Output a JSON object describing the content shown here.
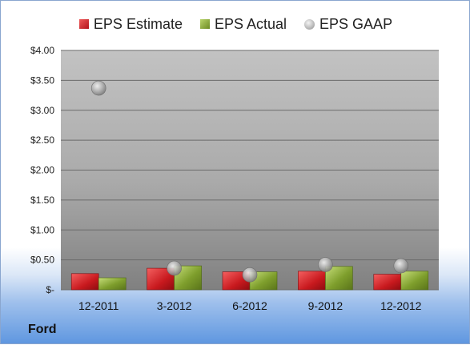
{
  "chart_data": {
    "type": "bar",
    "categories": [
      "12-2011",
      "3-2012",
      "6-2012",
      "9-2012",
      "12-2012"
    ],
    "series": [
      {
        "name": "EPS Estimate",
        "type": "bar",
        "color": "#c8191e",
        "values": [
          0.27,
          0.36,
          0.3,
          0.31,
          0.26
        ]
      },
      {
        "name": "EPS Actual",
        "type": "bar",
        "color": "#7a9a2a",
        "values": [
          0.2,
          0.4,
          0.3,
          0.39,
          0.31
        ]
      },
      {
        "name": "EPS GAAP",
        "type": "scatter",
        "color": "#a8a8a8",
        "values": [
          3.37,
          0.36,
          0.25,
          0.42,
          0.4
        ]
      }
    ],
    "ylim": [
      0,
      4
    ],
    "yticks": [
      {
        "value": 4,
        "label": "$4.00"
      },
      {
        "value": 3.5,
        "label": "$3.50"
      },
      {
        "value": 3,
        "label": "$3.00"
      },
      {
        "value": 2.5,
        "label": "$2.50"
      },
      {
        "value": 2,
        "label": "$2.00"
      },
      {
        "value": 1.5,
        "label": "$1.50"
      },
      {
        "value": 1,
        "label": "$1.00"
      },
      {
        "value": 0.5,
        "label": "$0.50"
      },
      {
        "value": 0,
        "label": "$-"
      }
    ],
    "grid": true,
    "legend_position": "top"
  },
  "footer": {
    "company": "Ford"
  }
}
